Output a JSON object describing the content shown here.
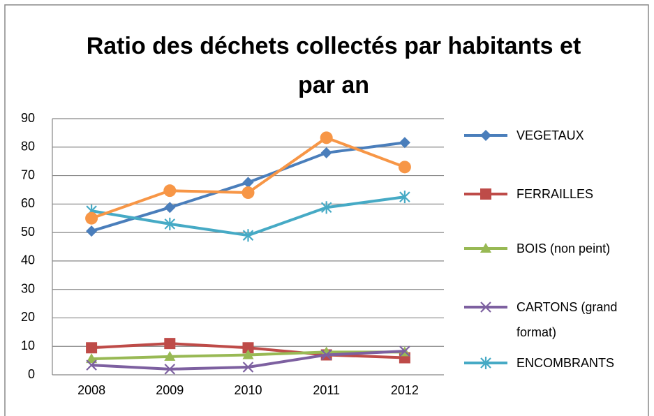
{
  "chart_data": {
    "type": "line",
    "title": "Ratio des déchets collectés par habitants et par an",
    "categories": [
      "2008",
      "2009",
      "2010",
      "2011",
      "2012"
    ],
    "ylim": [
      0,
      90
    ],
    "yticks": [
      0,
      10,
      20,
      30,
      40,
      50,
      60,
      70,
      80,
      90
    ],
    "grid": true,
    "legend": "right",
    "series": [
      {
        "name": "VEGETAUX",
        "color": "#4a7ebb",
        "marker": "diamond",
        "values": [
          50.5,
          58.8,
          67.6,
          78,
          81.6
        ]
      },
      {
        "name": "FERRAILLES",
        "color": "#be4b48",
        "marker": "square",
        "values": [
          9.5,
          11,
          9.5,
          7,
          6
        ]
      },
      {
        "name": "BOIS (non peint)",
        "color": "#98b954",
        "marker": "triangle",
        "values": [
          5.6,
          6.4,
          7,
          8,
          8
        ]
      },
      {
        "name": "CARTONS (grand format)",
        "color": "#7d60a0",
        "marker": "x",
        "values": [
          3.4,
          2,
          2.7,
          7,
          8.3
        ]
      },
      {
        "name": "ENCOMBRANTS",
        "color": "#46aac5",
        "marker": "star",
        "values": [
          57.6,
          53,
          49,
          58.8,
          62.5
        ]
      },
      {
        "color": "#f79646",
        "marker": "circle",
        "values": [
          55,
          64.7,
          64,
          83.3,
          73
        ]
      }
    ]
  }
}
